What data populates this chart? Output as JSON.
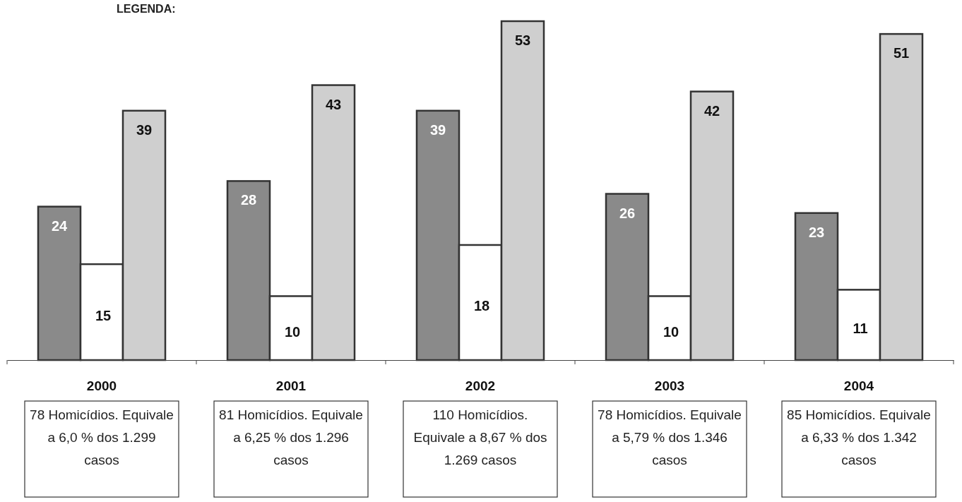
{
  "chart_data": {
    "type": "bar",
    "categories": [
      "2000",
      "2001",
      "2002",
      "2003",
      "2004"
    ],
    "series": [
      {
        "color": "#8a8a8a",
        "values": [
          24,
          28,
          39,
          26,
          23
        ]
      },
      {
        "color": "#ffffff",
        "values": [
          15,
          10,
          18,
          10,
          11
        ]
      },
      {
        "color": "#cfcfcf",
        "values": [
          39,
          43,
          53,
          42,
          51
        ]
      }
    ],
    "data_labels": true,
    "annotations": [
      "LEGENDA:",
      "78 Homicídios. Equivale a 6,0 % dos 1.299 casos",
      "81 Homicídios. Equivale a 6,25 % dos 1.296 casos",
      "110 Homicídios. Equivale a 8,67 % dos 1.269 casos",
      "78 Homicídios. Equivale a 5,79 % dos 1.346 casos",
      "85 Homicídios. Equivale a 6,33 % dos 1.342 casos"
    ]
  }
}
